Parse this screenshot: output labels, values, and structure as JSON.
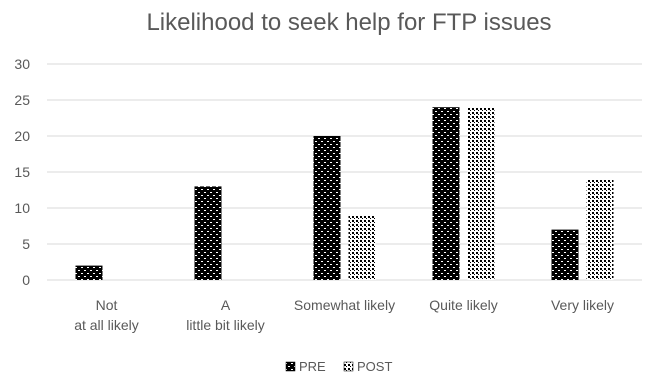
{
  "chart_data": {
    "type": "bar",
    "title": "Likelihood to seek help for FTP issues",
    "xlabel": "",
    "ylabel": "",
    "categories": [
      "Not at all likely",
      "A little bit likely",
      "Somewhat likely",
      "Quite likely",
      "Very likely"
    ],
    "series": [
      {
        "name": "PRE",
        "values": [
          2,
          13,
          20,
          24,
          7
        ],
        "pattern": "dense"
      },
      {
        "name": "POST",
        "values": [
          0,
          0,
          9,
          24,
          14
        ],
        "pattern": "dotted"
      }
    ],
    "ylim": [
      0,
      30
    ],
    "yticks": [
      0,
      5,
      10,
      15,
      20,
      25,
      30
    ],
    "grid": true,
    "legend_position": "bottom",
    "colors": {
      "bar_fill": "#000000",
      "bar_pattern": "#ffffff",
      "grid": "#d9d9d9",
      "text": "#595959"
    }
  }
}
